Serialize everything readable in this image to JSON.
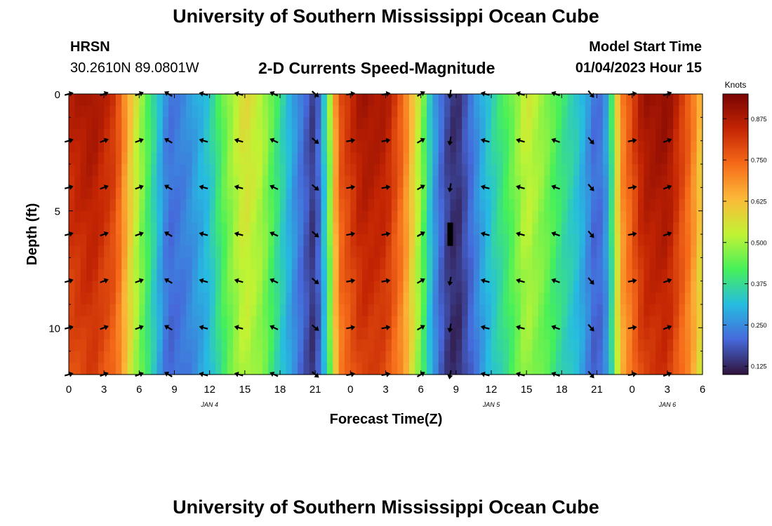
{
  "header": {
    "title": "University of Southern Mississippi Ocean Cube",
    "station": "HRSN",
    "coords": "30.2610N  89.0801W",
    "subtitle": "2-D Currents Speed-Magnitude",
    "model_label": "Model Start Time",
    "model_time": "01/04/2023 Hour 15"
  },
  "footer": {
    "title": "University of Southern Mississippi Ocean Cube"
  },
  "chart_data": {
    "type": "heatmap",
    "title": "2-D Currents Speed-Magnitude",
    "xlabel": "Forecast Time(Z)",
    "ylabel": "Depth (ft)",
    "x_range_hours": [
      0,
      54
    ],
    "ylim": [
      0,
      12
    ],
    "y_ticks": [
      0,
      5,
      10
    ],
    "x_ticks": [
      {
        "hour": 0,
        "label": "0"
      },
      {
        "hour": 3,
        "label": "3"
      },
      {
        "hour": 6,
        "label": "6"
      },
      {
        "hour": 9,
        "label": "9"
      },
      {
        "hour": 12,
        "label": "12"
      },
      {
        "hour": 15,
        "label": "15"
      },
      {
        "hour": 18,
        "label": "18"
      },
      {
        "hour": 21,
        "label": "21"
      },
      {
        "hour": 24,
        "label": "0"
      },
      {
        "hour": 27,
        "label": "3"
      },
      {
        "hour": 30,
        "label": "6"
      },
      {
        "hour": 33,
        "label": "9"
      },
      {
        "hour": 36,
        "label": "12"
      },
      {
        "hour": 39,
        "label": "15"
      },
      {
        "hour": 42,
        "label": "18"
      },
      {
        "hour": 45,
        "label": "21"
      },
      {
        "hour": 48,
        "label": "0"
      },
      {
        "hour": 51,
        "label": "3"
      },
      {
        "hour": 54,
        "label": "6"
      }
    ],
    "date_labels": [
      {
        "hour": 12,
        "label": "JAN 4"
      },
      {
        "hour": 36,
        "label": "JAN 5"
      },
      {
        "hour": 51,
        "label": "JAN 6"
      }
    ],
    "colorbar": {
      "unit": "Knots",
      "min": 0.1,
      "max": 0.95,
      "ticks": [
        "0.875",
        "0.750",
        "0.625",
        "0.500",
        "0.375",
        "0.250",
        "0.125"
      ],
      "colors": [
        "#30123b",
        "#4669db",
        "#26bce1",
        "#45f05a",
        "#c1f334",
        "#fcba39",
        "#f66b19",
        "#c42503",
        "#7a0403"
      ]
    },
    "speed_profile": [
      {
        "hour": 0,
        "speed": 0.86
      },
      {
        "hour": 2,
        "speed": 0.9
      },
      {
        "hour": 4,
        "speed": 0.82
      },
      {
        "hour": 5.5,
        "speed": 0.58
      },
      {
        "hour": 7,
        "speed": 0.4
      },
      {
        "hour": 8.5,
        "speed": 0.22
      },
      {
        "hour": 10,
        "speed": 0.25
      },
      {
        "hour": 12,
        "speed": 0.34
      },
      {
        "hour": 13.5,
        "speed": 0.48
      },
      {
        "hour": 15,
        "speed": 0.58
      },
      {
        "hour": 16.5,
        "speed": 0.52
      },
      {
        "hour": 18,
        "speed": 0.38
      },
      {
        "hour": 19.5,
        "speed": 0.25
      },
      {
        "hour": 21,
        "speed": 0.14
      },
      {
        "hour": 22,
        "speed": 0.4
      },
      {
        "hour": 23,
        "speed": 0.78
      },
      {
        "hour": 25,
        "speed": 0.9
      },
      {
        "hour": 27,
        "speed": 0.88
      },
      {
        "hour": 28.5,
        "speed": 0.75
      },
      {
        "hour": 30,
        "speed": 0.5
      },
      {
        "hour": 31,
        "speed": 0.3
      },
      {
        "hour": 32,
        "speed": 0.18
      },
      {
        "hour": 33,
        "speed": 0.13
      },
      {
        "hour": 34,
        "speed": 0.2
      },
      {
        "hour": 35.5,
        "speed": 0.32
      },
      {
        "hour": 37.5,
        "speed": 0.44
      },
      {
        "hour": 39,
        "speed": 0.55
      },
      {
        "hour": 40.5,
        "speed": 0.49
      },
      {
        "hour": 42,
        "speed": 0.4
      },
      {
        "hour": 43.5,
        "speed": 0.33
      },
      {
        "hour": 45,
        "speed": 0.2
      },
      {
        "hour": 46,
        "speed": 0.3
      },
      {
        "hour": 47,
        "speed": 0.7
      },
      {
        "hour": 49,
        "speed": 0.9
      },
      {
        "hour": 51,
        "speed": 0.92
      },
      {
        "hour": 53,
        "speed": 0.75
      },
      {
        "hour": 54,
        "speed": 0.6
      }
    ],
    "arrow_depths": [
      0,
      2,
      4,
      6,
      8,
      10,
      12
    ],
    "arrow_columns": [
      {
        "hour": 0,
        "angle": -15
      },
      {
        "hour": 3,
        "angle": -20
      },
      {
        "hour": 6,
        "angle": -20
      },
      {
        "hour": 8.5,
        "angle": 210
      },
      {
        "hour": 11.5,
        "angle": 195
      },
      {
        "hour": 14.5,
        "angle": 195
      },
      {
        "hour": 17.5,
        "angle": 205
      },
      {
        "hour": 21,
        "angle": 40
      },
      {
        "hour": 24,
        "angle": -10
      },
      {
        "hour": 27,
        "angle": -10
      },
      {
        "hour": 30,
        "angle": -30
      },
      {
        "hour": 32.5,
        "angle": 100
      },
      {
        "hour": 35.5,
        "angle": 195
      },
      {
        "hour": 38.5,
        "angle": 195
      },
      {
        "hour": 41.5,
        "angle": 200
      },
      {
        "hour": 44.5,
        "angle": 50
      },
      {
        "hour": 48,
        "angle": -10
      },
      {
        "hour": 51,
        "angle": -20
      }
    ],
    "missing_cell": {
      "hour": 32.5,
      "depth_from": 5.5,
      "depth_to": 6.5
    }
  }
}
